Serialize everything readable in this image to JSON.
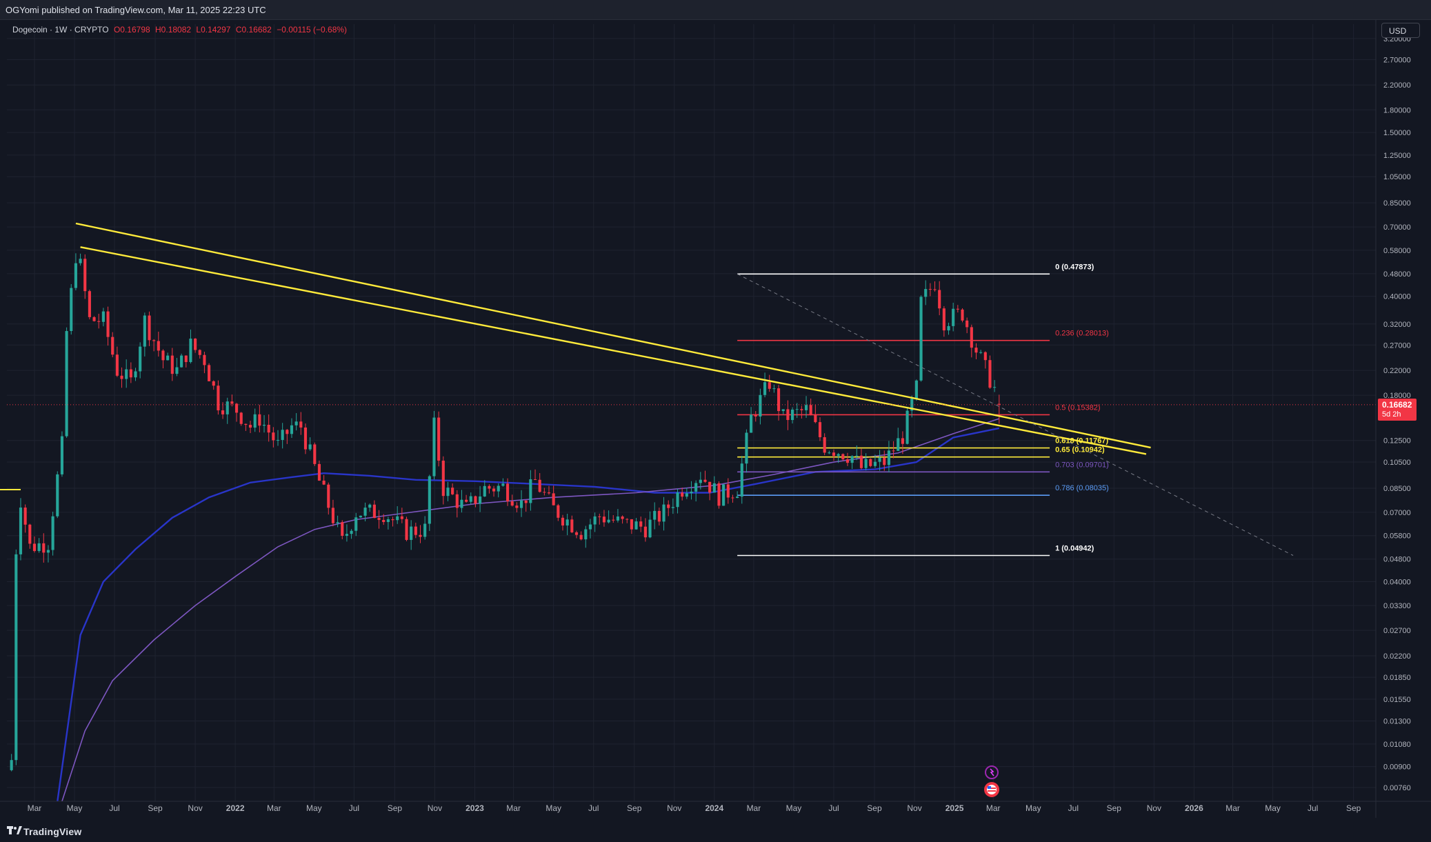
{
  "header": {
    "publish_text": "OGYomi published on TradingView.com, Mar 11, 2025 22:23 UTC"
  },
  "legend": {
    "symbol": "Dogecoin · 1W · CRYPTO",
    "open": "O0.16798",
    "high": "H0.18082",
    "low": "L0.14297",
    "close": "C0.16682",
    "change": "−0.00115 (−0.68%)"
  },
  "currency_button": "USD",
  "price_badge": {
    "value": "0.16682",
    "countdown": "5d 2h"
  },
  "footer": {
    "brand": "TradingView"
  },
  "colors": {
    "background": "#131722",
    "up": "#26a69a",
    "down": "#f23645",
    "trendline": "#ffeb3b",
    "ma_blue": "#2935c9",
    "ma_purple": "#7e57c2"
  },
  "chart_data": {
    "type": "candlestick",
    "symbol": "Dogecoin",
    "interval": "1W",
    "scale": "log",
    "ylim": [
      0.0068,
      3.4
    ],
    "x_range": [
      "2021-01-18",
      "2026-10-05"
    ],
    "price_axis_ticks": [
      "3.20000",
      "2.70000",
      "2.20000",
      "1.80000",
      "1.50000",
      "1.25000",
      "1.05000",
      "0.85000",
      "0.70000",
      "0.58000",
      "0.48000",
      "0.40000",
      "0.32000",
      "0.27000",
      "0.22000",
      "0.18000",
      "0.12500",
      "0.10500",
      "0.08500",
      "0.07000",
      "0.05800",
      "0.04800",
      "0.04000",
      "0.03300",
      "0.02700",
      "0.02200",
      "0.01850",
      "0.01550",
      "0.01300",
      "0.01080",
      "0.00900",
      "0.00760"
    ],
    "time_axis_ticks": [
      {
        "label": "Mar",
        "date": "2021-03-01"
      },
      {
        "label": "May",
        "date": "2021-05-01"
      },
      {
        "label": "Jul",
        "date": "2021-07-01"
      },
      {
        "label": "Sep",
        "date": "2021-09-01"
      },
      {
        "label": "Nov",
        "date": "2021-11-01"
      },
      {
        "label": "2022",
        "date": "2022-01-01"
      },
      {
        "label": "Mar",
        "date": "2022-03-01"
      },
      {
        "label": "May",
        "date": "2022-05-01"
      },
      {
        "label": "Jul",
        "date": "2022-07-01"
      },
      {
        "label": "Sep",
        "date": "2022-09-01"
      },
      {
        "label": "Nov",
        "date": "2022-11-01"
      },
      {
        "label": "2023",
        "date": "2023-01-01"
      },
      {
        "label": "Mar",
        "date": "2023-03-01"
      },
      {
        "label": "May",
        "date": "2023-05-01"
      },
      {
        "label": "Jul",
        "date": "2023-07-01"
      },
      {
        "label": "Sep",
        "date": "2023-09-01"
      },
      {
        "label": "Nov",
        "date": "2023-11-01"
      },
      {
        "label": "2024",
        "date": "2024-01-01"
      },
      {
        "label": "Mar",
        "date": "2024-03-01"
      },
      {
        "label": "May",
        "date": "2024-05-01"
      },
      {
        "label": "Jul",
        "date": "2024-07-01"
      },
      {
        "label": "Sep",
        "date": "2024-09-01"
      },
      {
        "label": "Nov",
        "date": "2024-11-01"
      },
      {
        "label": "2025",
        "date": "2025-01-01"
      },
      {
        "label": "Mar",
        "date": "2025-03-01"
      },
      {
        "label": "May",
        "date": "2025-05-01"
      },
      {
        "label": "Jul",
        "date": "2025-07-01"
      },
      {
        "label": "Sep",
        "date": "2025-09-01"
      },
      {
        "label": "Nov",
        "date": "2025-11-01"
      },
      {
        "label": "2026",
        "date": "2026-01-01"
      },
      {
        "label": "Mar",
        "date": "2026-03-01"
      },
      {
        "label": "May",
        "date": "2026-05-01"
      },
      {
        "label": "Jul",
        "date": "2026-07-01"
      },
      {
        "label": "Sep",
        "date": "2026-09-01"
      }
    ],
    "series": [
      {
        "name": "Dogecoin",
        "kind": "candles",
        "step": "7d",
        "start": "2021-01-25",
        "close_path": [
          [
            "2021-01-25",
            0.0095
          ],
          [
            "2021-02-01",
            0.052
          ],
          [
            "2021-02-08",
            0.078
          ],
          [
            "2021-02-22",
            0.053
          ],
          [
            "2021-03-22",
            0.055
          ],
          [
            "2021-04-12",
            0.12
          ],
          [
            "2021-04-19",
            0.3
          ],
          [
            "2021-05-03",
            0.56
          ],
          [
            "2021-05-10",
            0.51
          ],
          [
            "2021-05-24",
            0.33
          ],
          [
            "2021-06-14",
            0.33
          ],
          [
            "2021-07-05",
            0.22
          ],
          [
            "2021-07-26",
            0.2
          ],
          [
            "2021-08-16",
            0.33
          ],
          [
            "2021-09-13",
            0.24
          ],
          [
            "2021-10-04",
            0.22
          ],
          [
            "2021-10-25",
            0.27
          ],
          [
            "2021-11-15",
            0.24
          ],
          [
            "2021-12-06",
            0.17
          ],
          [
            "2022-01-03",
            0.16
          ],
          [
            "2022-01-24",
            0.14
          ],
          [
            "2022-02-07",
            0.15
          ],
          [
            "2022-03-07",
            0.12
          ],
          [
            "2022-03-28",
            0.14
          ],
          [
            "2022-04-11",
            0.14
          ],
          [
            "2022-05-09",
            0.09
          ],
          [
            "2022-06-13",
            0.055
          ],
          [
            "2022-07-04",
            0.07
          ],
          [
            "2022-08-15",
            0.07
          ],
          [
            "2022-09-19",
            0.06
          ],
          [
            "2022-10-17",
            0.061
          ],
          [
            "2022-10-31",
            0.14
          ],
          [
            "2022-11-14",
            0.085
          ],
          [
            "2022-12-19",
            0.072
          ],
          [
            "2023-01-16",
            0.085
          ],
          [
            "2023-02-13",
            0.086
          ],
          [
            "2023-03-13",
            0.075
          ],
          [
            "2023-04-03",
            0.09
          ],
          [
            "2023-05-01",
            0.072
          ],
          [
            "2023-06-12",
            0.06
          ],
          [
            "2023-07-10",
            0.068
          ],
          [
            "2023-08-14",
            0.064
          ],
          [
            "2023-09-18",
            0.062
          ],
          [
            "2023-10-16",
            0.07
          ],
          [
            "2023-11-13",
            0.085
          ],
          [
            "2023-12-11",
            0.095
          ],
          [
            "2024-01-08",
            0.08
          ],
          [
            "2024-02-05",
            0.085
          ],
          [
            "2024-02-26",
            0.15
          ],
          [
            "2024-03-25",
            0.2
          ],
          [
            "2024-04-15",
            0.15
          ],
          [
            "2024-05-20",
            0.16
          ],
          [
            "2024-06-17",
            0.12
          ],
          [
            "2024-07-29",
            0.11
          ],
          [
            "2024-08-12",
            0.1
          ],
          [
            "2024-09-16",
            0.105
          ],
          [
            "2024-10-14",
            0.13
          ],
          [
            "2024-11-04",
            0.19
          ],
          [
            "2024-11-11",
            0.38
          ],
          [
            "2024-12-02",
            0.45
          ],
          [
            "2024-12-16",
            0.33
          ],
          [
            "2025-01-13",
            0.35
          ],
          [
            "2025-02-03",
            0.26
          ],
          [
            "2025-03-03",
            0.19
          ],
          [
            "2025-03-10",
            0.16682
          ]
        ]
      },
      {
        "name": "MA (blue)",
        "kind": "line",
        "points": [
          [
            "2021-04-05",
            0.0068
          ],
          [
            "2021-05-10",
            0.026
          ],
          [
            "2021-06-14",
            0.04
          ],
          [
            "2021-08-02",
            0.052
          ],
          [
            "2021-09-27",
            0.067
          ],
          [
            "2021-11-22",
            0.079
          ],
          [
            "2022-01-24",
            0.089
          ],
          [
            "2022-03-28",
            0.093
          ],
          [
            "2022-05-16",
            0.096
          ],
          [
            "2022-07-25",
            0.094
          ],
          [
            "2022-10-03",
            0.091
          ],
          [
            "2023-01-02",
            0.09
          ],
          [
            "2023-04-03",
            0.088
          ],
          [
            "2023-07-03",
            0.086
          ],
          [
            "2023-10-02",
            0.082
          ],
          [
            "2023-12-25",
            0.082
          ],
          [
            "2024-03-04",
            0.088
          ],
          [
            "2024-06-03",
            0.097
          ],
          [
            "2024-09-02",
            0.099
          ],
          [
            "2024-11-04",
            0.105
          ],
          [
            "2024-12-30",
            0.128
          ],
          [
            "2025-03-10",
            0.138
          ]
        ]
      },
      {
        "name": "MA (purple)",
        "kind": "line",
        "points": [
          [
            "2021-04-12",
            0.0068
          ],
          [
            "2021-05-17",
            0.012
          ],
          [
            "2021-06-28",
            0.018
          ],
          [
            "2021-08-30",
            0.025
          ],
          [
            "2021-11-01",
            0.033
          ],
          [
            "2022-01-03",
            0.042
          ],
          [
            "2022-03-07",
            0.053
          ],
          [
            "2022-05-02",
            0.061
          ],
          [
            "2022-07-04",
            0.066
          ],
          [
            "2022-09-05",
            0.069
          ],
          [
            "2023-01-02",
            0.075
          ],
          [
            "2023-05-01",
            0.079
          ],
          [
            "2023-09-04",
            0.082
          ],
          [
            "2024-01-01",
            0.087
          ],
          [
            "2024-04-01",
            0.095
          ],
          [
            "2024-07-01",
            0.105
          ],
          [
            "2024-10-07",
            0.113
          ],
          [
            "2024-12-30",
            0.132
          ],
          [
            "2025-03-10",
            0.149
          ]
        ]
      }
    ],
    "trendlines": [
      {
        "from": [
          "2021-05-03",
          0.72
        ],
        "to": [
          "2025-10-27",
          0.118
        ],
        "color": "#ffeb3b"
      },
      {
        "from": [
          "2021-05-10",
          0.595
        ],
        "to": [
          "2025-10-20",
          0.112
        ],
        "color": "#ffeb3b"
      },
      {
        "from": [
          "2024-02-05",
          0.47873
        ],
        "to": [
          "2026-06-01",
          0.04942
        ],
        "style": "dashed",
        "color": "#787b86"
      }
    ],
    "fibonacci": {
      "start": "2024-02-05",
      "end": "2025-05-26",
      "levels": [
        {
          "ratio": "0",
          "value": 0.47873,
          "label": "0 (0.47873)",
          "color": "#ffffff"
        },
        {
          "ratio": "0.236",
          "value": 0.28013,
          "label": "0.236 (0.28013)",
          "color": "#f23645"
        },
        {
          "ratio": "0.5",
          "value": 0.15382,
          "label": "0.5 (0.15382)",
          "color": "#f23645"
        },
        {
          "ratio": "0.618",
          "value": 0.11767,
          "label": "0.618 (0.11767)",
          "color": "#ffeb3b"
        },
        {
          "ratio": "0.65",
          "value": 0.10942,
          "label": "0.65 (0.10942)",
          "color": "#ffeb3b"
        },
        {
          "ratio": "0.703",
          "value": 0.09701,
          "label": "0.703 (0.09701)",
          "color": "#7e57c2"
        },
        {
          "ratio": "0.786",
          "value": 0.08035,
          "label": "0.786 (0.08035)",
          "color": "#5b9cf6"
        },
        {
          "ratio": "1",
          "value": 0.04942,
          "label": "1 (0.04942)",
          "color": "#ffffff"
        }
      ]
    },
    "last_price": 0.16682
  }
}
